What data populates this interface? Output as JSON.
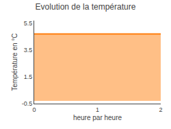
{
  "chart_data": {
    "type": "area",
    "title": "Evolution de la température",
    "xlabel": "heure par heure",
    "ylabel": "Température en °C",
    "x": [
      0,
      2
    ],
    "values": [
      4.7,
      4.7
    ],
    "fill_bottom": -0.3,
    "xlim": [
      0,
      2
    ],
    "ylim": [
      -0.5,
      5.7
    ],
    "xticks": [
      0,
      1,
      2
    ],
    "yticks": [
      -0.5,
      1.5,
      3.5,
      5.5
    ],
    "grid": false
  }
}
